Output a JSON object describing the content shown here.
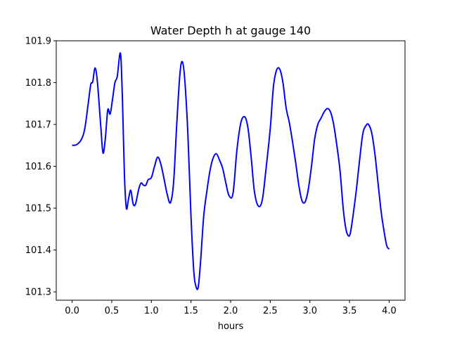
{
  "chart_data": {
    "type": "line",
    "title": "Water Depth h at gauge 140",
    "xlabel": "hours",
    "ylabel": "",
    "xlim": [
      -0.2,
      4.2
    ],
    "ylim": [
      101.28,
      101.9
    ],
    "grid": false,
    "legend": "none",
    "x_ticks": [
      {
        "value": 0.0,
        "label": "0.0"
      },
      {
        "value": 0.5,
        "label": "0.5"
      },
      {
        "value": 1.0,
        "label": "1.0"
      },
      {
        "value": 1.5,
        "label": "1.5"
      },
      {
        "value": 2.0,
        "label": "2.0"
      },
      {
        "value": 2.5,
        "label": "2.5"
      },
      {
        "value": 3.0,
        "label": "3.0"
      },
      {
        "value": 3.5,
        "label": "3.5"
      },
      {
        "value": 4.0,
        "label": "4.0"
      }
    ],
    "y_ticks": [
      {
        "value": 101.3,
        "label": "101.3"
      },
      {
        "value": 101.4,
        "label": "101.4"
      },
      {
        "value": 101.5,
        "label": "101.5"
      },
      {
        "value": 101.6,
        "label": "101.6"
      },
      {
        "value": 101.7,
        "label": "101.7"
      },
      {
        "value": 101.8,
        "label": "101.8"
      },
      {
        "value": 101.9,
        "label": "101.9"
      }
    ],
    "series": [
      {
        "color": "#0000ff",
        "points": [
          [
            0.0,
            101.65
          ],
          [
            0.06,
            101.652
          ],
          [
            0.12,
            101.665
          ],
          [
            0.16,
            101.69
          ],
          [
            0.2,
            101.745
          ],
          [
            0.235,
            101.795
          ],
          [
            0.26,
            101.802
          ],
          [
            0.29,
            101.835
          ],
          [
            0.32,
            101.8
          ],
          [
            0.36,
            101.7
          ],
          [
            0.39,
            101.632
          ],
          [
            0.42,
            101.668
          ],
          [
            0.45,
            101.735
          ],
          [
            0.48,
            101.725
          ],
          [
            0.51,
            101.76
          ],
          [
            0.54,
            101.8
          ],
          [
            0.57,
            101.815
          ],
          [
            0.61,
            101.87
          ],
          [
            0.635,
            101.76
          ],
          [
            0.66,
            101.58
          ],
          [
            0.685,
            101.5
          ],
          [
            0.71,
            101.52
          ],
          [
            0.74,
            101.543
          ],
          [
            0.77,
            101.51
          ],
          [
            0.8,
            101.51
          ],
          [
            0.84,
            101.545
          ],
          [
            0.87,
            101.56
          ],
          [
            0.9,
            101.555
          ],
          [
            0.93,
            101.555
          ],
          [
            0.96,
            101.568
          ],
          [
            1.0,
            101.573
          ],
          [
            1.04,
            101.6
          ],
          [
            1.08,
            101.622
          ],
          [
            1.12,
            101.605
          ],
          [
            1.16,
            101.57
          ],
          [
            1.2,
            101.533
          ],
          [
            1.24,
            101.513
          ],
          [
            1.28,
            101.56
          ],
          [
            1.32,
            101.7
          ],
          [
            1.36,
            101.82
          ],
          [
            1.39,
            101.85
          ],
          [
            1.42,
            101.81
          ],
          [
            1.46,
            101.68
          ],
          [
            1.5,
            101.48
          ],
          [
            1.535,
            101.35
          ],
          [
            1.56,
            101.315
          ],
          [
            1.59,
            101.31
          ],
          [
            1.62,
            101.37
          ],
          [
            1.66,
            101.48
          ],
          [
            1.7,
            101.54
          ],
          [
            1.74,
            101.59
          ],
          [
            1.78,
            101.62
          ],
          [
            1.82,
            101.63
          ],
          [
            1.86,
            101.615
          ],
          [
            1.9,
            101.595
          ],
          [
            1.94,
            101.56
          ],
          [
            1.98,
            101.53
          ],
          [
            2.03,
            101.535
          ],
          [
            2.08,
            101.64
          ],
          [
            2.13,
            101.705
          ],
          [
            2.18,
            101.718
          ],
          [
            2.22,
            101.69
          ],
          [
            2.26,
            101.62
          ],
          [
            2.3,
            101.54
          ],
          [
            2.35,
            101.505
          ],
          [
            2.4,
            101.52
          ],
          [
            2.45,
            101.6
          ],
          [
            2.5,
            101.69
          ],
          [
            2.54,
            101.79
          ],
          [
            2.58,
            101.83
          ],
          [
            2.62,
            101.832
          ],
          [
            2.66,
            101.8
          ],
          [
            2.7,
            101.74
          ],
          [
            2.74,
            101.705
          ],
          [
            2.78,
            101.66
          ],
          [
            2.82,
            101.61
          ],
          [
            2.86,
            101.555
          ],
          [
            2.9,
            101.518
          ],
          [
            2.94,
            101.515
          ],
          [
            2.98,
            101.545
          ],
          [
            3.02,
            101.6
          ],
          [
            3.06,
            101.665
          ],
          [
            3.1,
            101.7
          ],
          [
            3.14,
            101.715
          ],
          [
            3.18,
            101.73
          ],
          [
            3.22,
            101.738
          ],
          [
            3.26,
            101.73
          ],
          [
            3.3,
            101.7
          ],
          [
            3.34,
            101.65
          ],
          [
            3.38,
            101.59
          ],
          [
            3.42,
            101.5
          ],
          [
            3.45,
            101.455
          ],
          [
            3.48,
            101.435
          ],
          [
            3.51,
            101.44
          ],
          [
            3.55,
            101.49
          ],
          [
            3.59,
            101.55
          ],
          [
            3.63,
            101.62
          ],
          [
            3.67,
            101.68
          ],
          [
            3.71,
            101.698
          ],
          [
            3.74,
            101.7
          ],
          [
            3.78,
            101.68
          ],
          [
            3.82,
            101.63
          ],
          [
            3.86,
            101.56
          ],
          [
            3.9,
            101.49
          ],
          [
            3.94,
            101.44
          ],
          [
            3.97,
            101.41
          ],
          [
            4.0,
            101.402
          ]
        ]
      }
    ]
  }
}
